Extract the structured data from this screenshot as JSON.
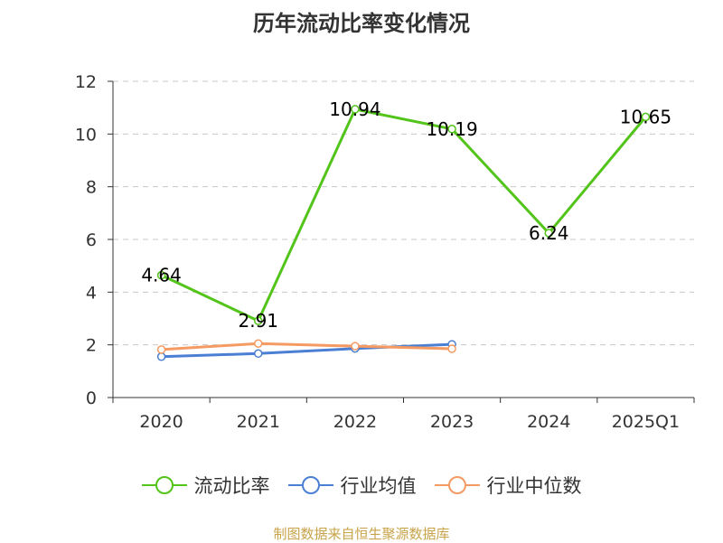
{
  "chart_data": {
    "type": "line",
    "title": "历年流动比率变化情况",
    "categories": [
      "2020",
      "2021",
      "2022",
      "2023",
      "2024",
      "2025Q1"
    ],
    "ylim": [
      0,
      12
    ],
    "yticks": [
      0,
      2,
      4,
      6,
      8,
      10,
      12
    ],
    "grid": true,
    "legend_position": "bottom",
    "series": [
      {
        "name": "流动比率",
        "color": "#52c41a",
        "values": [
          4.64,
          2.91,
          10.94,
          10.19,
          6.24,
          10.65
        ],
        "labels": [
          "4.64",
          "2.91",
          "10.94",
          "10.19",
          "6.24",
          "10.65"
        ]
      },
      {
        "name": "行业均值",
        "color": "#4a7fd4",
        "values": [
          1.55,
          1.67,
          1.86,
          2.02,
          null,
          null
        ]
      },
      {
        "name": "行业中位数",
        "color": "#f59a62",
        "values": [
          1.82,
          2.05,
          1.95,
          1.85,
          null,
          null
        ]
      }
    ]
  },
  "source": "制图数据来自恒生聚源数据库"
}
